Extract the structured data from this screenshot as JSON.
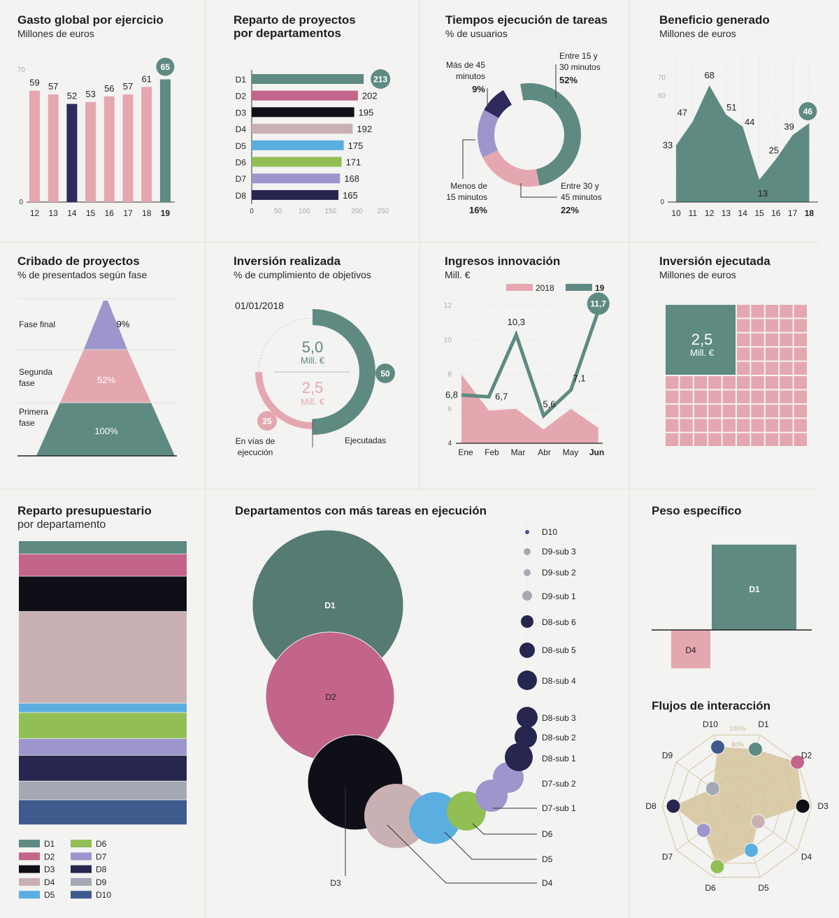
{
  "colors": {
    "teal": "#5e8a82",
    "teal_dark": "#557b72",
    "pink": "#e4a7b0",
    "navy": "#2f2a5e",
    "magenta": "#c3648a",
    "black": "#0f0f17",
    "mauve": "#c9b0b3",
    "sky": "#5aaee0",
    "green": "#91bf55",
    "lavender": "#9d96cc",
    "darknavy": "#26264f",
    "gray": "#a4a9b4",
    "steel": "#3f5a8c",
    "tan": "#d6c49c",
    "grid": "#dddddd"
  },
  "panels": {
    "gasto": {
      "title": "Gasto global por ejercicio",
      "subtitle": "Millones de euros"
    },
    "reparto_proyectos": {
      "title_line1": "Reparto de proyectos",
      "title_line2": "por departamentos"
    },
    "tiempos": {
      "title": "Tiempos ejecución de tareas",
      "subtitle": "% de usuarios"
    },
    "beneficio": {
      "title": "Beneficio generado",
      "subtitle": "Millones de euros"
    },
    "cribado": {
      "title": "Cribado de proyectos",
      "subtitle": "% de presentados según fase"
    },
    "inversion_realizada": {
      "title": "Inversión realizada",
      "subtitle": "% de cumplimiento de objetivos"
    },
    "ingresos": {
      "title": "Ingresos innovación",
      "subtitle": "Mill. €"
    },
    "inversion_ejecutada": {
      "title": "Inversión ejecutada",
      "subtitle": "Millones de euros"
    },
    "reparto_presupuestario": {
      "title_line1": "Reparto presupuestario",
      "title_line2": "por departamento"
    },
    "departamentos_tareas": {
      "title": "Departamentos con más tareas en ejecución"
    },
    "peso": {
      "title": "Peso específico"
    },
    "flujos": {
      "title": "Flujos de interacción"
    }
  },
  "chart_data": [
    {
      "id": "gasto",
      "type": "bar",
      "categories": [
        "12",
        "13",
        "14",
        "15",
        "16",
        "17",
        "18",
        "19"
      ],
      "values": [
        59,
        57,
        52,
        53,
        56,
        57,
        61,
        65
      ],
      "value_labels": [
        "59",
        "57",
        "52",
        "53",
        "56",
        "57",
        "61",
        "65"
      ],
      "yticks": [
        "0",
        "70"
      ],
      "ylim": [
        0,
        70
      ],
      "highlight": {
        "14": "navy",
        "19": "teal"
      }
    },
    {
      "id": "reparto_proyectos",
      "type": "bar",
      "orientation": "horizontal",
      "categories": [
        "D1",
        "D2",
        "D3",
        "D4",
        "D5",
        "D6",
        "D7",
        "D8"
      ],
      "values": [
        213,
        202,
        195,
        192,
        175,
        171,
        168,
        165
      ],
      "value_labels": [
        "213",
        "202",
        "195",
        "192",
        "175",
        "171",
        "168",
        "165"
      ],
      "xticks": [
        "0",
        "50",
        "100",
        "150",
        "200",
        "250"
      ],
      "xlim": [
        0,
        250
      ]
    },
    {
      "id": "tiempos",
      "type": "pie",
      "style": "donut",
      "slices": [
        {
          "label_lines": [
            "Entre 15 y",
            "30 minutos"
          ],
          "value": 52,
          "value_label": "52%"
        },
        {
          "label_lines": [
            "Entre 30 y",
            "45 minutos"
          ],
          "value": 22,
          "value_label": "22%"
        },
        {
          "label_lines": [
            "Menos de",
            "15 minutos"
          ],
          "value": 16,
          "value_label": "16%"
        },
        {
          "label_lines": [
            "Más de 45",
            "minutos"
          ],
          "value": 9,
          "value_label": "9%"
        }
      ]
    },
    {
      "id": "beneficio",
      "type": "area",
      "x": [
        "10",
        "11",
        "12",
        "13",
        "14",
        "15",
        "16",
        "17",
        "18"
      ],
      "values": [
        33,
        47,
        68,
        51,
        44,
        13,
        25,
        39,
        46
      ],
      "value_labels": [
        "33",
        "47",
        "68",
        "51",
        "44",
        "13",
        "25",
        "39",
        "46"
      ],
      "yticks": [
        "0",
        "60",
        "70"
      ],
      "ylim": [
        0,
        75
      ]
    },
    {
      "id": "cribado",
      "type": "funnel",
      "phases": [
        {
          "label_lines": [
            "Fase final"
          ],
          "value": 9,
          "value_label": "9%"
        },
        {
          "label_lines": [
            "Segunda",
            "fase"
          ],
          "value": 52,
          "value_label": "52%"
        },
        {
          "label_lines": [
            "Primera",
            "fase"
          ],
          "value": 100,
          "value_label": "100%"
        }
      ]
    },
    {
      "id": "inversion_realizada",
      "type": "pie",
      "style": "half-donuts",
      "date": "01/01/2018",
      "outer": {
        "value": 50,
        "value_label": "50",
        "amount": "5,0",
        "unit": "Mill. €",
        "label": "Ejecutadas"
      },
      "inner": {
        "value": 25,
        "value_label": "25",
        "amount": "2,5",
        "unit": "Mill. €",
        "label_lines": [
          "En vías de",
          "ejecución"
        ]
      }
    },
    {
      "id": "ingresos",
      "type": "line",
      "x": [
        "Ene",
        "Feb",
        "Mar",
        "Abr",
        "May",
        "Jun"
      ],
      "series": [
        {
          "name": "2018",
          "values": [
            8.0,
            5.9,
            6.0,
            4.8,
            6.0,
            4.9
          ]
        },
        {
          "name": "19",
          "values": [
            6.8,
            6.7,
            10.3,
            5.6,
            7.1,
            11.7
          ],
          "value_labels": [
            "6,8",
            "6,7",
            "10,3",
            "5,6",
            "7,1",
            "11,7"
          ]
        }
      ],
      "yticks": [
        "4",
        "6",
        "8",
        "10",
        "12"
      ],
      "ylim": [
        4,
        12
      ]
    },
    {
      "id": "inversion_ejecutada",
      "type": "waffle",
      "highlight_value": "2,5",
      "highlight_unit": "Mill. €",
      "highlight_cells": 16,
      "total_cells": 100
    },
    {
      "id": "reparto_presupuestario",
      "type": "bar",
      "style": "stacked-column",
      "categories": [
        "D1",
        "D2",
        "D3",
        "D4",
        "D5",
        "D6",
        "D7",
        "D8",
        "D9",
        "D10"
      ],
      "values": [
        4.5,
        7.7,
        12.2,
        31.7,
        3.2,
        9.0,
        5.8,
        8.9,
        6.5,
        8.6
      ]
    },
    {
      "id": "departamentos_tareas",
      "type": "scatter",
      "style": "bubble-spiral",
      "bubbles": [
        {
          "label": "D1",
          "size": 108
        },
        {
          "label": "D2",
          "size": 92
        },
        {
          "label": "D3",
          "size": 68
        },
        {
          "label": "D4",
          "size": 46
        },
        {
          "label": "D5",
          "size": 37
        },
        {
          "label": "D6",
          "size": 28
        },
        {
          "label": "D7-sub 1",
          "size": 23
        },
        {
          "label": "D7-sub 2",
          "size": 22
        },
        {
          "label": "D8-sub 1",
          "size": 20
        },
        {
          "label": "D8-sub 2",
          "size": 16
        },
        {
          "label": "D8-sub 3",
          "size": 15
        },
        {
          "label": "D8-sub 4",
          "size": 14
        },
        {
          "label": "D8-sub 5",
          "size": 11
        },
        {
          "label": "D8-sub 6",
          "size": 9
        },
        {
          "label": "D9-sub 1",
          "size": 7
        },
        {
          "label": "D9-sub 2",
          "size": 5
        },
        {
          "label": "D9-sub 3",
          "size": 5
        },
        {
          "label": "D10",
          "size": 3
        }
      ]
    },
    {
      "id": "peso",
      "type": "bar",
      "categories": [
        "D1",
        "D4"
      ],
      "values": [
        100,
        -45
      ]
    },
    {
      "id": "flujos",
      "type": "radar",
      "axes": [
        "D1",
        "D2",
        "D3",
        "D4",
        "D5",
        "D6",
        "D7",
        "D8",
        "D9",
        "D10"
      ],
      "values": [
        80,
        100,
        88,
        35,
        62,
        85,
        55,
        85,
        40,
        83
      ],
      "ring_labels": [
        "100%",
        "80%"
      ]
    }
  ],
  "legend_presupuestario": [
    "D1",
    "D6",
    "D2",
    "D7",
    "D3",
    "D8",
    "D4",
    "D9",
    "D5",
    "D10"
  ]
}
